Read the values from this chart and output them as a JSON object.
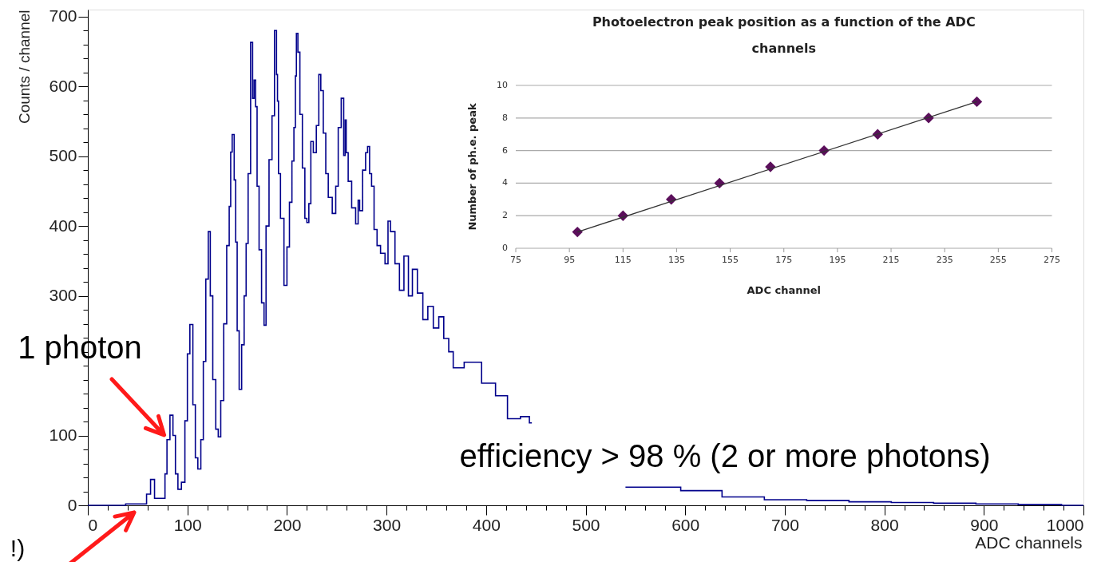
{
  "chart_data": [
    {
      "type": "step",
      "xlabel": "ADC channels",
      "ylabel": "Counts / channel",
      "color": "#00008b",
      "line_style": "solid",
      "xlim": [
        0,
        1000
      ],
      "ylim": [
        0,
        710
      ],
      "x": [
        0,
        36,
        40,
        50,
        57,
        61,
        65,
        69,
        77,
        78,
        81,
        84,
        87,
        89,
        92,
        96,
        99,
        101,
        104,
        107,
        109,
        112,
        115,
        117,
        120,
        122,
        124,
        127,
        130,
        132,
        135,
        138,
        141,
        143,
        144,
        146,
        148,
        149,
        151,
        153,
        156,
        158,
        160,
        162,
        165,
        166,
        168,
        169,
        171,
        173,
        176,
        178,
        180,
        184,
        186,
        189,
        190,
        191,
        192,
        195,
        199,
        201,
        204,
        206,
        208,
        209,
        210,
        212,
        214,
        217,
        219,
        221,
        223,
        225,
        228,
        231,
        233,
        235,
        238,
        240,
        243,
        248,
        250,
        253,
        256,
        258,
        259,
        260,
        263,
        267,
        271,
        272,
        274,
        278,
        280,
        282,
        284,
        286,
        289,
        292,
        296,
        301,
        302,
        306,
        311,
        315,
        320,
        324,
        328,
        334,
        339,
        344,
        350,
        355,
        360,
        365,
        369,
        387,
        404,
        415,
        428,
        441,
        446,
        460,
        500,
        535,
        540,
        575,
        616,
        658,
        701,
        743,
        786,
        828,
        871,
        913,
        956,
        1000
      ],
      "values": [
        0,
        0,
        2,
        2,
        2,
        16,
        37,
        10,
        10,
        45,
        94,
        129,
        100,
        45,
        23,
        33,
        121,
        217,
        259,
        144,
        68,
        52,
        94,
        206,
        324,
        392,
        300,
        180,
        109,
        98,
        150,
        260,
        372,
        428,
        506,
        531,
        466,
        377,
        250,
        166,
        230,
        300,
        375,
        475,
        663,
        583,
        609,
        571,
        457,
        366,
        290,
        258,
        400,
        495,
        558,
        680,
        617,
        579,
        475,
        411,
        315,
        370,
        434,
        493,
        541,
        615,
        676,
        649,
        560,
        483,
        411,
        405,
        432,
        521,
        505,
        544,
        617,
        594,
        533,
        475,
        441,
        418,
        457,
        541,
        583,
        501,
        552,
        505,
        464,
        426,
        403,
        437,
        422,
        480,
        505,
        514,
        475,
        457,
        395,
        372,
        361,
        346,
        407,
        392,
        346,
        308,
        357,
        300,
        338,
        304,
        266,
        285,
        254,
        270,
        239,
        220,
        197,
        205,
        175,
        157,
        124,
        127,
        118,
        null,
        null,
        null,
        26,
        26,
        21,
        12,
        8,
        7,
        5,
        4,
        3,
        2,
        1,
        0
      ],
      "xticks": [
        0,
        {
          "value": 20,
          "label": null
        },
        {
          "value": 40,
          "label": null
        },
        {
          "value": 60,
          "label": null
        },
        {
          "value": 80,
          "label": null
        },
        100,
        {
          "value": 120,
          "label": null
        },
        {
          "value": 140,
          "label": null
        },
        {
          "value": 160,
          "label": null
        },
        {
          "value": 180,
          "label": null
        },
        200,
        {
          "value": 220,
          "label": null
        },
        {
          "value": 240,
          "label": null
        },
        {
          "value": 260,
          "label": null
        },
        {
          "value": 280,
          "label": null
        },
        300,
        {
          "value": 320,
          "label": null
        },
        {
          "value": 340,
          "label": null
        },
        {
          "value": 360,
          "label": null
        },
        {
          "value": 380,
          "label": null
        },
        400,
        {
          "value": 420,
          "label": null
        },
        {
          "value": 440,
          "label": null
        },
        {
          "value": 460,
          "label": null
        },
        {
          "value": 480,
          "label": null
        },
        500,
        {
          "value": 520,
          "label": null
        },
        {
          "value": 540,
          "label": null
        },
        {
          "value": 560,
          "label": null
        },
        {
          "value": 580,
          "label": null
        },
        600,
        {
          "value": 620,
          "label": null
        },
        {
          "value": 640,
          "label": null
        },
        {
          "value": 660,
          "label": null
        },
        {
          "value": 680,
          "label": null
        },
        700,
        {
          "value": 720,
          "label": null
        },
        {
          "value": 740,
          "label": null
        },
        {
          "value": 760,
          "label": null
        },
        {
          "value": 780,
          "label": null
        },
        800,
        {
          "value": 820,
          "label": null
        },
        {
          "value": 840,
          "label": null
        },
        {
          "value": 860,
          "label": null
        },
        {
          "value": 880,
          "label": null
        },
        900,
        {
          "value": 920,
          "label": null
        },
        {
          "value": 940,
          "label": null
        },
        {
          "value": 960,
          "label": null
        },
        {
          "value": 980,
          "label": null
        },
        1000
      ],
      "yticks": [
        0,
        {
          "value": 20,
          "label": null
        },
        {
          "value": 40,
          "label": null
        },
        {
          "value": 60,
          "label": null
        },
        {
          "value": 80,
          "label": null
        },
        100,
        {
          "value": 120,
          "label": null
        },
        {
          "value": 140,
          "label": null
        },
        {
          "value": 160,
          "label": null
        },
        {
          "value": 180,
          "label": null
        },
        {
          "value": 200,
          "label": null
        },
        {
          "value": 220,
          "label": null
        },
        {
          "value": 240,
          "label": null
        },
        {
          "value": 260,
          "label": null
        },
        {
          "value": 280,
          "label": null
        },
        300,
        {
          "value": 320,
          "label": null
        },
        {
          "value": 340,
          "label": null
        },
        {
          "value": 360,
          "label": null
        },
        {
          "value": 380,
          "label": null
        },
        400,
        {
          "value": 420,
          "label": null
        },
        {
          "value": 440,
          "label": null
        },
        {
          "value": 460,
          "label": null
        },
        {
          "value": 480,
          "label": null
        },
        500,
        {
          "value": 520,
          "label": null
        },
        {
          "value": 540,
          "label": null
        },
        {
          "value": 560,
          "label": null
        },
        {
          "value": 580,
          "label": null
        },
        600,
        {
          "value": 620,
          "label": null
        },
        {
          "value": 640,
          "label": null
        },
        {
          "value": 660,
          "label": null
        },
        {
          "value": 680,
          "label": null
        },
        700
      ],
      "annotations": [
        "efficiency > 98 % (2 or more photons)",
        {
          "text": "1 photon",
          "x": 81,
          "y": 94
        },
        "!)"
      ]
    },
    {
      "type": "scatter",
      "title": "Photoelectron peak position as a function of the ADC channels",
      "xlabel": "ADC channel",
      "ylabel": "Number of ph.e. peak",
      "xlim": [
        75,
        275
      ],
      "xticks": [
        75,
        95,
        115,
        135,
        155,
        175,
        195,
        215,
        235,
        255,
        275
      ],
      "ylim": [
        0,
        10
      ],
      "yticks": [
        0,
        2,
        4,
        6,
        8,
        10
      ],
      "grid": "y",
      "series": [
        {
          "type": "scatter",
          "color": "#5b0f5b",
          "marker": "diamond",
          "x": [
            98,
            115,
            133,
            151,
            170,
            190,
            210,
            229,
            247
          ],
          "values": [
            1,
            2,
            3,
            4,
            5,
            6,
            7,
            8,
            9
          ]
        },
        {
          "type": "line",
          "color": "#333333",
          "marker": "none",
          "x": [
            98,
            247
          ],
          "values": [
            1,
            9
          ]
        }
      ]
    }
  ]
}
